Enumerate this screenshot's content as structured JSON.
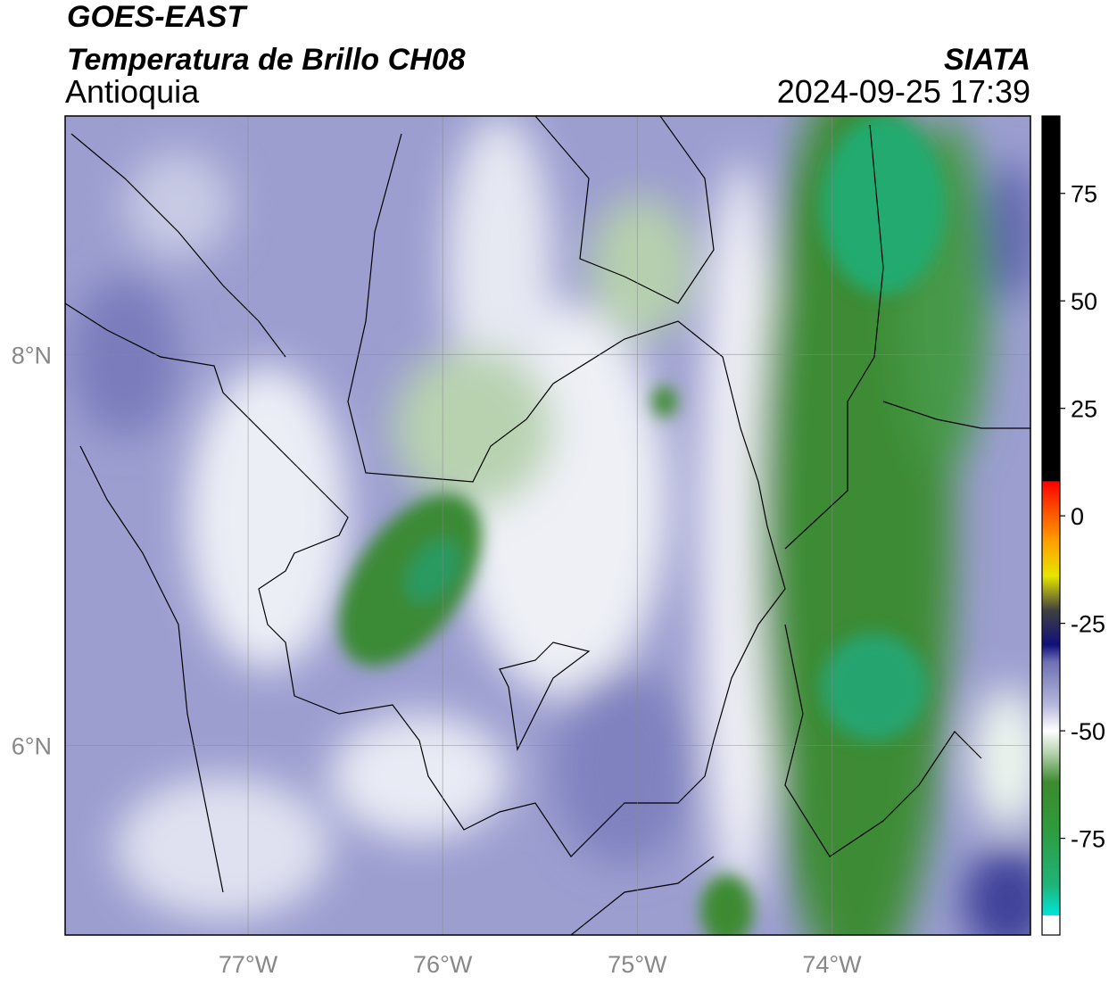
{
  "header": {
    "title": "GOES-EAST",
    "subtitle": "Temperatura de Brillo CH08",
    "region": "Antioquia",
    "source": "SIATA",
    "timestamp": "2024-09-25 17:39"
  },
  "map": {
    "lonlim": [
      -77.94,
      -72.98
    ],
    "latlim": [
      5.03,
      9.22
    ],
    "lon_ticks": [
      {
        "value": -77,
        "label": "77°W"
      },
      {
        "value": -76,
        "label": "76°W"
      },
      {
        "value": -75,
        "label": "75°W"
      },
      {
        "value": -74,
        "label": "74°W"
      }
    ],
    "lat_ticks": [
      {
        "value": 8,
        "label": "8°N"
      },
      {
        "value": 6,
        "label": "6°N"
      }
    ],
    "grid": true
  },
  "colorbar": {
    "lim": [
      -97.5,
      93
    ],
    "ticks": [
      75,
      50,
      25,
      0,
      -25,
      -50,
      -75
    ],
    "stops": [
      {
        "value": -97.5,
        "color": "#ffffff"
      },
      {
        "value": -93,
        "color": "#ffffff"
      },
      {
        "value": -92.9,
        "color": "#00e6d6"
      },
      {
        "value": -86,
        "color": "#1fb47a"
      },
      {
        "value": -72,
        "color": "#2f9a3a"
      },
      {
        "value": -62,
        "color": "#3d8a30"
      },
      {
        "value": -55,
        "color": "#b8d4b0"
      },
      {
        "value": -50,
        "color": "#ffffff"
      },
      {
        "value": -44,
        "color": "#b6b8dc"
      },
      {
        "value": -34,
        "color": "#6e70b4"
      },
      {
        "value": -30,
        "color": "#10107a"
      },
      {
        "value": -22,
        "color": "#404040"
      },
      {
        "value": -14,
        "color": "#e6e600"
      },
      {
        "value": -6,
        "color": "#ffa000"
      },
      {
        "value": 4,
        "color": "#ff3000"
      },
      {
        "value": 8,
        "color": "#ff0000"
      },
      {
        "value": 8.1,
        "color": "#000000"
      },
      {
        "value": 93,
        "color": "#000000"
      }
    ]
  }
}
